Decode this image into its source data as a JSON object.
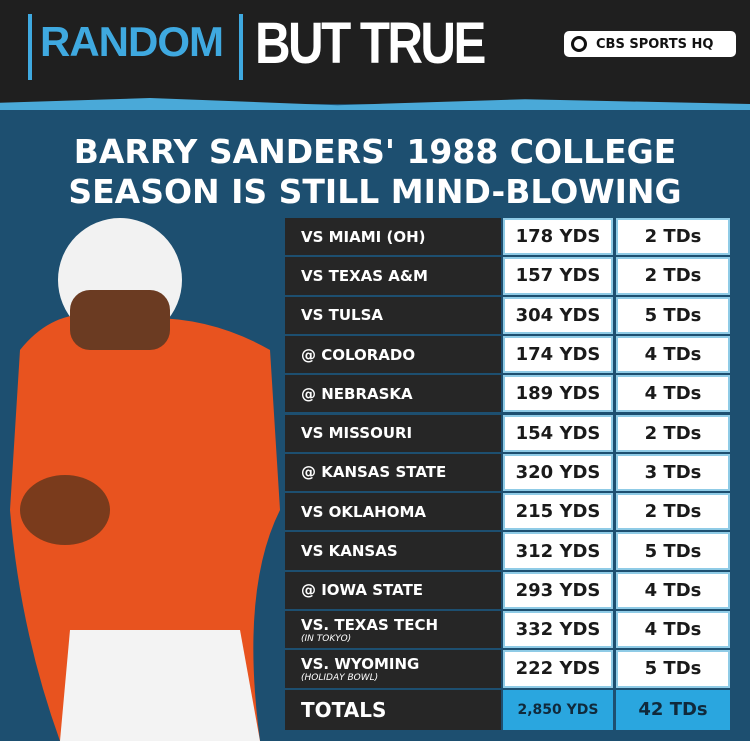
{
  "header": {
    "tag": "RANDOM",
    "title": "BUT TRUE",
    "brand": "CBS SPORTS HQ"
  },
  "headline": {
    "line1": "BARRY SANDERS' 1988 COLLEGE",
    "line2": "SEASON IS STILL MIND-BLOWING"
  },
  "table": {
    "rows": [
      {
        "opponent": "VS MIAMI (OH)",
        "yards": "178 YDS",
        "tds": "2 TDs"
      },
      {
        "opponent": "VS TEXAS A&M",
        "yards": "157 YDS",
        "tds": "2 TDs"
      },
      {
        "opponent": "VS TULSA",
        "yards": "304 YDS",
        "tds": "5 TDs"
      },
      {
        "opponent": "@ COLORADO",
        "yards": "174 YDS",
        "tds": "4 TDs"
      },
      {
        "opponent": "@ NEBRASKA",
        "yards": "189 YDS",
        "tds": "4 TDs"
      },
      {
        "opponent": "VS MISSOURI",
        "yards": "154 YDS",
        "tds": "2 TDs"
      },
      {
        "opponent": "@ KANSAS STATE",
        "yards": "320 YDS",
        "tds": "3 TDs"
      },
      {
        "opponent": "VS OKLAHOMA",
        "yards": "215 YDS",
        "tds": "2 TDs"
      },
      {
        "opponent": "VS KANSAS",
        "yards": "312 YDS",
        "tds": "5 TDs"
      },
      {
        "opponent": "@ IOWA STATE",
        "yards": "293 YDS",
        "tds": "4 TDs"
      },
      {
        "opponent": "VS. TEXAS TECH",
        "note": "(IN TOKYO)",
        "yards": "332 YDS",
        "tds": "4 TDs"
      },
      {
        "opponent": "VS. WYOMING",
        "note": "(HOLIDAY BOWL)",
        "yards": "222 YDS",
        "tds": "5 TDs"
      }
    ],
    "totals": {
      "label": "TOTALS",
      "yards": "2,850 YDS",
      "tds": "42 TDs"
    }
  }
}
